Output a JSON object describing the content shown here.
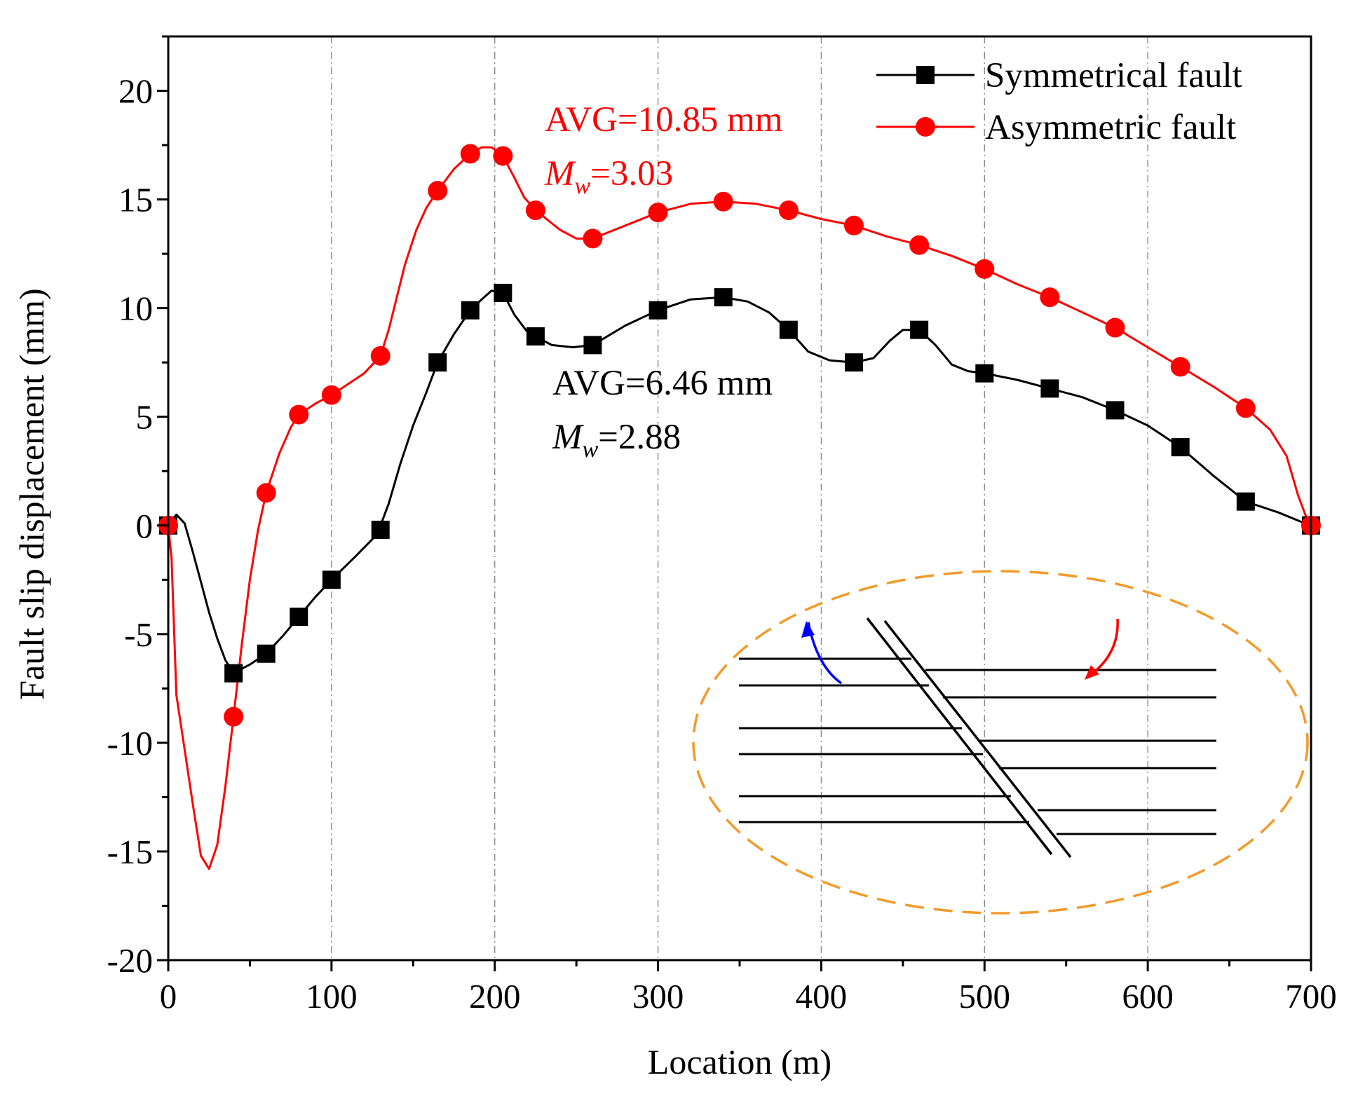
{
  "chart_data": {
    "type": "line",
    "xlabel": "Location (m)",
    "ylabel": "Fault slip displacement (mm)",
    "xlim": [
      0,
      700
    ],
    "ylim": [
      -20,
      22.5
    ],
    "xticks": [
      "0",
      "100",
      "200",
      "300",
      "400",
      "500",
      "600",
      "700"
    ],
    "yticks": [
      "-20",
      "-15",
      "-10",
      "-5",
      "0",
      "5",
      "10",
      "15",
      "20"
    ],
    "grid": "vertical dash-dot at x ticks",
    "legend_position": "top-right",
    "series": [
      {
        "name": "Symmetrical fault",
        "color": "#000000",
        "marker": "square",
        "markers": [
          [
            0,
            0
          ],
          [
            40,
            -6.8
          ],
          [
            60,
            -5.9
          ],
          [
            80,
            -4.2
          ],
          [
            100,
            -2.5
          ],
          [
            130,
            -0.2
          ],
          [
            165,
            7.5
          ],
          [
            185,
            9.9
          ],
          [
            205,
            10.7
          ],
          [
            225,
            8.7
          ],
          [
            260,
            8.3
          ],
          [
            300,
            9.9
          ],
          [
            340,
            10.5
          ],
          [
            380,
            9.0
          ],
          [
            420,
            7.5
          ],
          [
            460,
            9.0
          ],
          [
            500,
            7.0
          ],
          [
            540,
            6.3
          ],
          [
            580,
            5.3
          ],
          [
            620,
            3.6
          ],
          [
            660,
            1.1
          ],
          [
            700,
            0
          ]
        ],
        "curve": [
          [
            0,
            0
          ],
          [
            5,
            0.5
          ],
          [
            10,
            0.1
          ],
          [
            15,
            -1.2
          ],
          [
            20,
            -2.6
          ],
          [
            25,
            -4.0
          ],
          [
            30,
            -5.2
          ],
          [
            35,
            -6.2
          ],
          [
            40,
            -6.8
          ],
          [
            50,
            -6.4
          ],
          [
            60,
            -5.9
          ],
          [
            70,
            -5.1
          ],
          [
            80,
            -4.2
          ],
          [
            90,
            -3.3
          ],
          [
            100,
            -2.5
          ],
          [
            115,
            -1.4
          ],
          [
            128,
            -0.4
          ],
          [
            135,
            1.0
          ],
          [
            142,
            2.8
          ],
          [
            150,
            4.6
          ],
          [
            158,
            6.1
          ],
          [
            165,
            7.5
          ],
          [
            175,
            8.8
          ],
          [
            185,
            9.9
          ],
          [
            192,
            10.4
          ],
          [
            198,
            10.8
          ],
          [
            205,
            10.7
          ],
          [
            212,
            9.7
          ],
          [
            220,
            8.9
          ],
          [
            225,
            8.7
          ],
          [
            235,
            8.3
          ],
          [
            248,
            8.2
          ],
          [
            260,
            8.3
          ],
          [
            280,
            9.2
          ],
          [
            300,
            9.9
          ],
          [
            320,
            10.4
          ],
          [
            340,
            10.5
          ],
          [
            355,
            10.3
          ],
          [
            368,
            9.8
          ],
          [
            380,
            9.0
          ],
          [
            392,
            8.0
          ],
          [
            405,
            7.6
          ],
          [
            420,
            7.5
          ],
          [
            432,
            7.7
          ],
          [
            442,
            8.5
          ],
          [
            450,
            9.0
          ],
          [
            460,
            9.0
          ],
          [
            470,
            8.3
          ],
          [
            480,
            7.4
          ],
          [
            490,
            7.1
          ],
          [
            500,
            7.0
          ],
          [
            520,
            6.7
          ],
          [
            540,
            6.3
          ],
          [
            560,
            5.9
          ],
          [
            580,
            5.3
          ],
          [
            600,
            4.6
          ],
          [
            620,
            3.6
          ],
          [
            640,
            2.3
          ],
          [
            660,
            1.1
          ],
          [
            680,
            0.6
          ],
          [
            693,
            0.2
          ],
          [
            700,
            0
          ]
        ]
      },
      {
        "name": "Asymmetric fault",
        "color": "#ff0000",
        "marker": "circle",
        "markers": [
          [
            0,
            0
          ],
          [
            40,
            -8.8
          ],
          [
            60,
            1.5
          ],
          [
            80,
            5.1
          ],
          [
            100,
            6.0
          ],
          [
            130,
            7.8
          ],
          [
            165,
            15.4
          ],
          [
            185,
            17.1
          ],
          [
            205,
            17.0
          ],
          [
            225,
            14.5
          ],
          [
            260,
            13.2
          ],
          [
            300,
            14.4
          ],
          [
            340,
            14.9
          ],
          [
            380,
            14.5
          ],
          [
            420,
            13.8
          ],
          [
            460,
            12.9
          ],
          [
            500,
            11.8
          ],
          [
            540,
            10.5
          ],
          [
            580,
            9.1
          ],
          [
            620,
            7.3
          ],
          [
            660,
            5.4
          ],
          [
            700,
            0
          ]
        ],
        "curve": [
          [
            0,
            0
          ],
          [
            2,
            -1.5
          ],
          [
            5,
            -7.8
          ],
          [
            10,
            -10.3
          ],
          [
            15,
            -12.8
          ],
          [
            20,
            -15.2
          ],
          [
            25,
            -15.8
          ],
          [
            30,
            -14.7
          ],
          [
            35,
            -12.0
          ],
          [
            40,
            -8.8
          ],
          [
            45,
            -5.5
          ],
          [
            50,
            -2.5
          ],
          [
            55,
            -0.2
          ],
          [
            60,
            1.5
          ],
          [
            68,
            3.3
          ],
          [
            75,
            4.5
          ],
          [
            80,
            5.1
          ],
          [
            90,
            5.6
          ],
          [
            100,
            6.0
          ],
          [
            110,
            6.5
          ],
          [
            120,
            7.0
          ],
          [
            130,
            7.8
          ],
          [
            135,
            9.0
          ],
          [
            140,
            10.5
          ],
          [
            145,
            12.0
          ],
          [
            152,
            13.6
          ],
          [
            158,
            14.6
          ],
          [
            165,
            15.4
          ],
          [
            175,
            16.4
          ],
          [
            185,
            17.1
          ],
          [
            192,
            17.4
          ],
          [
            198,
            17.4
          ],
          [
            205,
            17.0
          ],
          [
            212,
            16.0
          ],
          [
            218,
            15.1
          ],
          [
            225,
            14.5
          ],
          [
            240,
            13.6
          ],
          [
            250,
            13.2
          ],
          [
            260,
            13.2
          ],
          [
            280,
            13.8
          ],
          [
            300,
            14.4
          ],
          [
            320,
            14.8
          ],
          [
            340,
            14.9
          ],
          [
            360,
            14.8
          ],
          [
            380,
            14.5
          ],
          [
            400,
            14.1
          ],
          [
            420,
            13.8
          ],
          [
            440,
            13.3
          ],
          [
            460,
            12.9
          ],
          [
            480,
            12.4
          ],
          [
            500,
            11.8
          ],
          [
            520,
            11.1
          ],
          [
            540,
            10.5
          ],
          [
            560,
            9.8
          ],
          [
            580,
            9.1
          ],
          [
            600,
            8.2
          ],
          [
            620,
            7.3
          ],
          [
            640,
            6.4
          ],
          [
            660,
            5.4
          ],
          [
            675,
            4.4
          ],
          [
            685,
            3.2
          ],
          [
            692,
            1.4
          ],
          [
            697,
            0.4
          ],
          [
            700,
            0
          ]
        ]
      }
    ],
    "annotations": [
      {
        "name": "asym-avg",
        "text": "AVG=10.85 mm",
        "color": "#ff0000"
      },
      {
        "name": "asym-mw",
        "sym": "M",
        "sub": "w",
        "text": "=3.03",
        "color": "#ff0000"
      },
      {
        "name": "sym-avg",
        "text": "AVG=6.46 mm",
        "color": "#000000"
      },
      {
        "name": "sym-mw",
        "sym": "M",
        "sub": "w",
        "text": "=2.88",
        "color": "#000000"
      }
    ],
    "inset": "schematic of horizontal strata offset across an inclined double-line fault inside a dashed orange ellipse, blue arrow on the left block pointing up, red arrow on the right block pointing down"
  }
}
